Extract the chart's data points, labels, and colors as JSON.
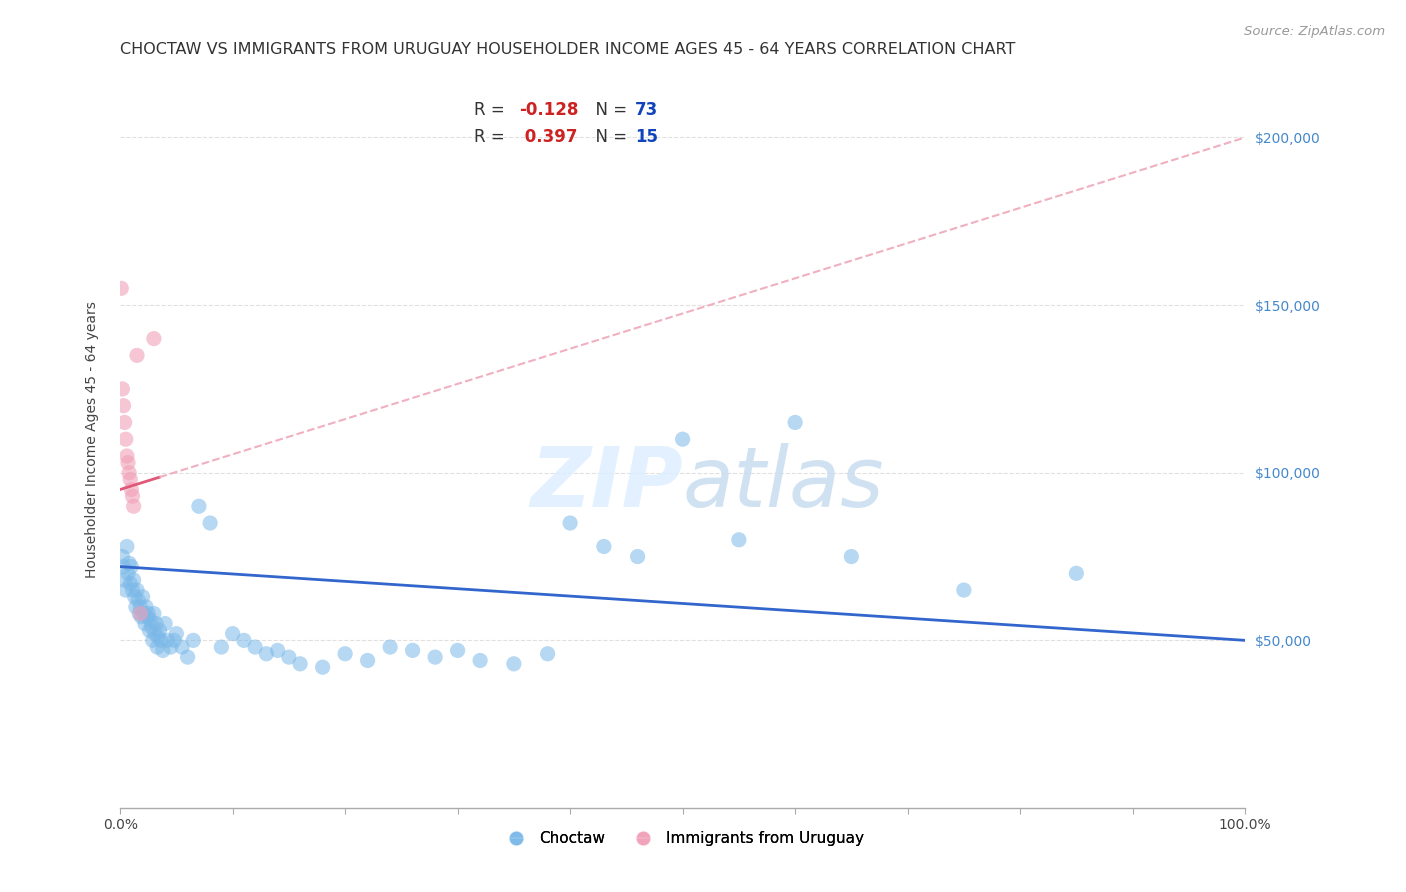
{
  "title": "CHOCTAW VS IMMIGRANTS FROM URUGUAY HOUSEHOLDER INCOME AGES 45 - 64 YEARS CORRELATION CHART",
  "source": "Source: ZipAtlas.com",
  "ylabel": "Householder Income Ages 45 - 64 years",
  "xlim": [
    0.0,
    1.0
  ],
  "ylim": [
    0,
    220000
  ],
  "yticks": [
    50000,
    100000,
    150000,
    200000
  ],
  "ytick_labels": [
    "$50,000",
    "$100,000",
    "$150,000",
    "$200,000"
  ],
  "xticks": [
    0.0,
    0.1,
    0.2,
    0.3,
    0.4,
    0.5,
    0.6,
    0.7,
    0.8,
    0.9,
    1.0
  ],
  "xtick_labels": [
    "0.0%",
    "",
    "",
    "",
    "",
    "",
    "",
    "",
    "",
    "",
    "100.0%"
  ],
  "choctaw_color": "#7ab8e8",
  "uruguay_color": "#f0a0b8",
  "choctaw_line_color": "#3366cc",
  "uruguay_line_color": "#e05878",
  "uruguay_dashed_color": "#f0b0c0",
  "background_color": "#ffffff",
  "grid_color": "#dddddd",
  "choctaw_x": [
    0.002,
    0.003,
    0.004,
    0.005,
    0.006,
    0.007,
    0.008,
    0.009,
    0.01,
    0.011,
    0.012,
    0.013,
    0.014,
    0.015,
    0.016,
    0.017,
    0.018,
    0.019,
    0.02,
    0.021,
    0.022,
    0.023,
    0.024,
    0.025,
    0.026,
    0.027,
    0.028,
    0.029,
    0.03,
    0.031,
    0.032,
    0.033,
    0.034,
    0.035,
    0.036,
    0.038,
    0.04,
    0.042,
    0.045,
    0.048,
    0.05,
    0.055,
    0.06,
    0.065,
    0.07,
    0.08,
    0.09,
    0.1,
    0.11,
    0.12,
    0.13,
    0.14,
    0.15,
    0.16,
    0.18,
    0.2,
    0.22,
    0.24,
    0.26,
    0.28,
    0.3,
    0.32,
    0.35,
    0.38,
    0.4,
    0.43,
    0.46,
    0.5,
    0.55,
    0.6,
    0.65,
    0.75,
    0.85
  ],
  "choctaw_y": [
    75000,
    72000,
    68000,
    65000,
    78000,
    70000,
    73000,
    67000,
    72000,
    65000,
    68000,
    63000,
    60000,
    65000,
    62000,
    58000,
    60000,
    57000,
    63000,
    58000,
    55000,
    60000,
    57000,
    58000,
    53000,
    56000,
    54000,
    50000,
    58000,
    52000,
    55000,
    48000,
    51000,
    53000,
    50000,
    47000,
    55000,
    50000,
    48000,
    50000,
    52000,
    48000,
    45000,
    50000,
    90000,
    85000,
    48000,
    52000,
    50000,
    48000,
    46000,
    47000,
    45000,
    43000,
    42000,
    46000,
    44000,
    48000,
    47000,
    45000,
    47000,
    44000,
    43000,
    46000,
    85000,
    78000,
    75000,
    110000,
    80000,
    115000,
    75000,
    65000,
    70000
  ],
  "uruguay_x": [
    0.001,
    0.002,
    0.003,
    0.004,
    0.005,
    0.006,
    0.007,
    0.008,
    0.009,
    0.01,
    0.011,
    0.012,
    0.015,
    0.018,
    0.03
  ],
  "uruguay_y": [
    155000,
    125000,
    120000,
    115000,
    110000,
    105000,
    103000,
    100000,
    98000,
    95000,
    93000,
    90000,
    135000,
    58000,
    140000
  ],
  "choctaw_R": -0.128,
  "choctaw_N": 73,
  "uruguay_R": 0.397,
  "uruguay_N": 15,
  "legend_blue_label": "Choctaw",
  "legend_pink_label": "Immigrants from Uruguay",
  "title_fontsize": 11.5,
  "source_fontsize": 9.5,
  "axis_label_fontsize": 10,
  "tick_fontsize": 10,
  "marker_size": 120
}
